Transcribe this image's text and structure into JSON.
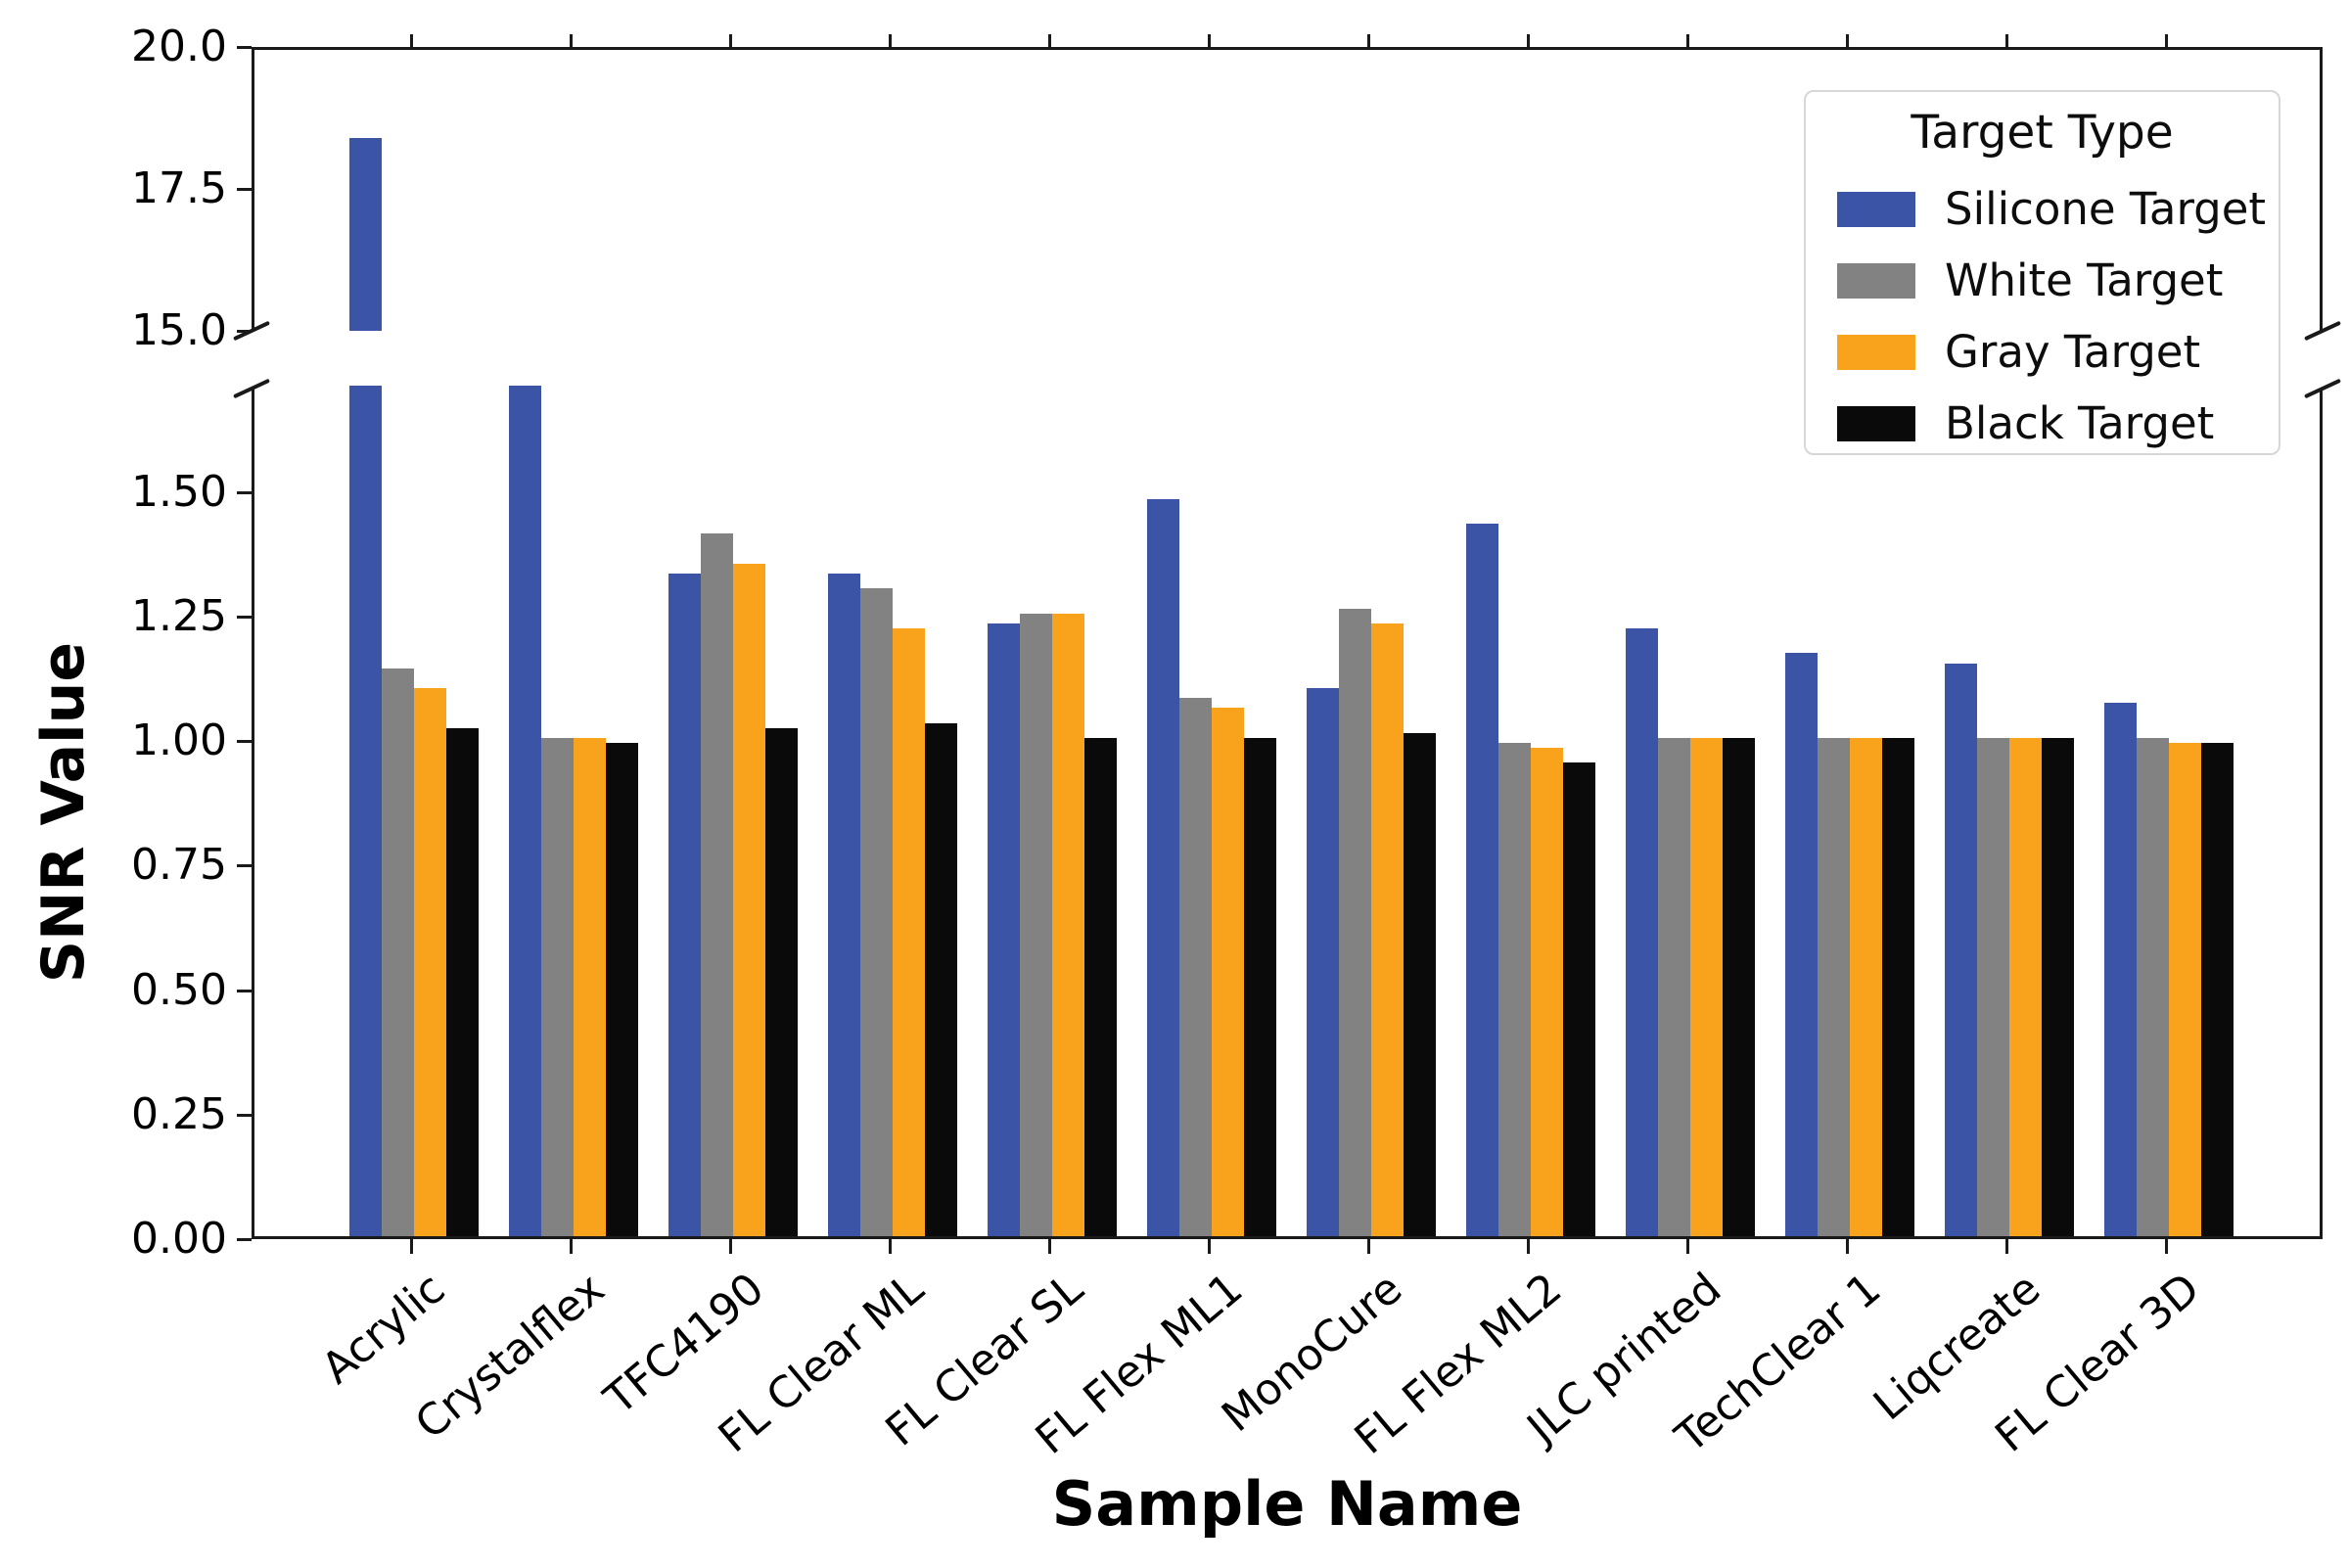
{
  "chart_data": {
    "type": "bar",
    "title": "",
    "xlabel": "Sample Name",
    "ylabel": "SNR Value",
    "broken_axis": true,
    "categories": [
      "Acrylic",
      "Crystalflex",
      "TFC4190",
      "FL Clear ML",
      "FL Clear SL",
      "FL Flex ML1",
      "MonoCure",
      "FL Flex ML2",
      "JLC printed",
      "TechClear 1",
      "Liqcreate",
      "FL Clear 3D"
    ],
    "series": [
      {
        "name": "Silicone Target",
        "color": "#3b54a5",
        "values": [
          18.4,
          null,
          1.33,
          1.33,
          1.23,
          1.48,
          1.1,
          1.43,
          1.22,
          1.17,
          1.15,
          1.07
        ],
        "clipped_at_break": [
          true,
          true,
          false,
          false,
          false,
          false,
          false,
          false,
          false,
          false,
          false,
          false
        ]
      },
      {
        "name": "White Target",
        "color": "#828282",
        "values": [
          1.14,
          1.0,
          1.41,
          1.3,
          1.25,
          1.08,
          1.26,
          0.99,
          1.0,
          1.0,
          1.0,
          1.0
        ],
        "clipped_at_break": [
          false,
          false,
          false,
          false,
          false,
          false,
          false,
          false,
          false,
          false,
          false,
          false
        ]
      },
      {
        "name": "Gray Target",
        "color": "#f9a21b",
        "values": [
          1.1,
          1.0,
          1.35,
          1.22,
          1.25,
          1.06,
          1.23,
          0.98,
          1.0,
          1.0,
          1.0,
          0.99
        ],
        "clipped_at_break": [
          false,
          false,
          false,
          false,
          false,
          false,
          false,
          false,
          false,
          false,
          false,
          false
        ]
      },
      {
        "name": "Black Target",
        "color": "#0a0a0a",
        "values": [
          1.02,
          0.99,
          1.02,
          1.03,
          1.0,
          1.0,
          1.01,
          0.95,
          1.0,
          1.0,
          1.0,
          0.99
        ],
        "clipped_at_break": [
          false,
          false,
          false,
          false,
          false,
          false,
          false,
          false,
          false,
          false,
          false,
          false
        ]
      }
    ],
    "legend": {
      "title": "Target Type",
      "position": "upper right",
      "entries": [
        "Silicone Target",
        "White Target",
        "Gray Target",
        "Black Target"
      ]
    },
    "axes": {
      "upper": {
        "ylim": [
          15.0,
          20.0
        ],
        "tick_labels": [
          "20.0",
          "17.5",
          "15.0"
        ],
        "tick_values": [
          20.0,
          17.5,
          15.0
        ]
      },
      "lower": {
        "ylim": [
          0.0,
          1.71
        ],
        "tick_labels": [
          "1.50",
          "1.25",
          "1.00",
          "0.75",
          "0.50",
          "0.25",
          "0.00"
        ],
        "tick_values": [
          1.5,
          1.25,
          1.0,
          0.75,
          0.5,
          0.25,
          0.0
        ]
      }
    },
    "grid": false
  }
}
